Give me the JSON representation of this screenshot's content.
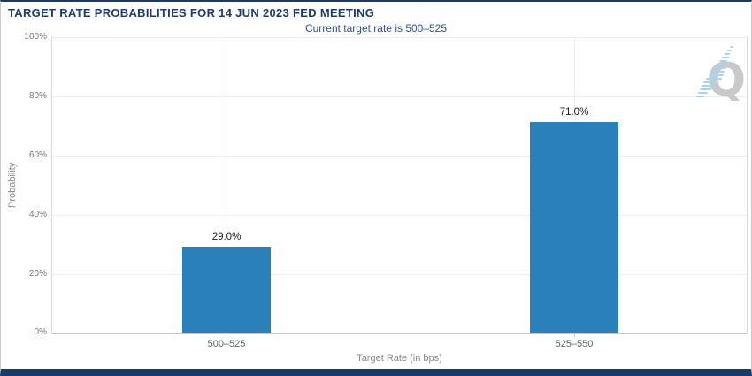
{
  "header": {
    "title": "TARGET RATE PROBABILITIES FOR 14 JUN 2023 FED MEETING",
    "subtitle": "Current target rate is 500–525"
  },
  "chart_data": {
    "type": "bar",
    "title": "TARGET RATE PROBABILITIES FOR 14 JUN 2023 FED MEETING",
    "subtitle": "Current target rate is 500–525",
    "categories": [
      "500–525",
      "525–550"
    ],
    "values": [
      29.0,
      71.0
    ],
    "value_labels": [
      "29.0%",
      "71.0%"
    ],
    "xlabel": "Target Rate (in bps)",
    "ylabel": "Probability",
    "ylim": [
      0,
      100
    ],
    "yticks": [
      "100%",
      "80%",
      "60%",
      "40%",
      "20%",
      "0%"
    ],
    "ytick_values": [
      100,
      80,
      60,
      40,
      20,
      0
    ],
    "grid": "horizontal gridlines every 20%, vertical gridline at each category center",
    "legend_position": "none",
    "bar_color": "#2a80ba"
  },
  "watermark": {
    "letter": "Q",
    "name": "quikstrike-q-logo"
  },
  "colors": {
    "title_text": "#1e3a6e",
    "subtitle_text": "#2d4f9e",
    "bar": "#2a80ba",
    "frame_border": "#1b3a6b",
    "axis_text": "#777777",
    "logo_gray": "#c9c9c9",
    "logo_blue": "#a5d5f2"
  }
}
